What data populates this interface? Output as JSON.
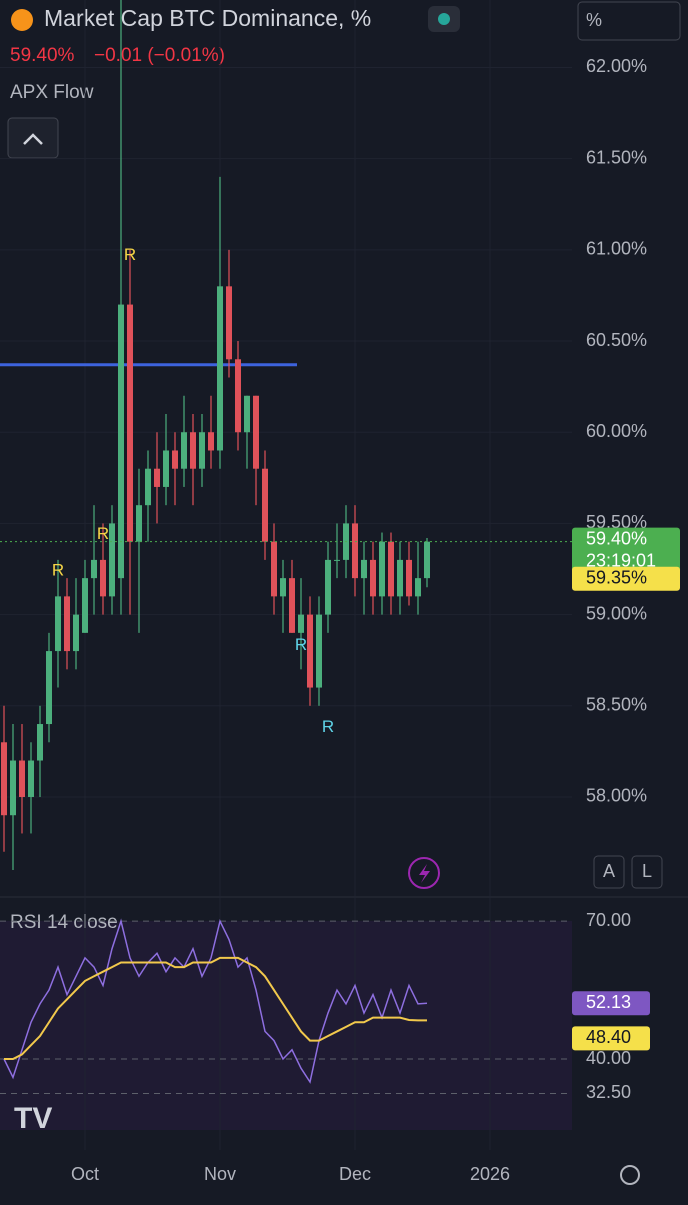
{
  "chart_data": [
    {
      "type": "candlestick",
      "title": "Market Cap BTC Dominance, %",
      "last_value": "59.40%",
      "change": "−0.01 (−0.01%)",
      "indicator": "APX Flow",
      "scale_button": "%",
      "up_color": "#4caf7d",
      "down_color": "#e0525a",
      "categories": [
        null,
        null,
        null,
        null,
        null,
        null,
        null,
        null,
        null,
        "Oct",
        null,
        null,
        null,
        null,
        null,
        null,
        null,
        null,
        null,
        null,
        null,
        null,
        null,
        null,
        "Nov",
        null,
        null,
        null,
        null,
        null,
        null,
        null,
        null,
        null,
        null,
        null,
        null,
        null,
        null,
        "Dec",
        null,
        null,
        null,
        null,
        null,
        null,
        null,
        null,
        null,
        null,
        null,
        null,
        null,
        null,
        "2026",
        null
      ],
      "values": [
        [
          58.3,
          58.5,
          57.7,
          57.9
        ],
        [
          57.9,
          58.4,
          57.6,
          58.2
        ],
        [
          58.2,
          58.4,
          57.8,
          58.0
        ],
        [
          58.0,
          58.3,
          57.8,
          58.2
        ],
        [
          58.2,
          58.5,
          58.0,
          58.4
        ],
        [
          58.4,
          58.9,
          58.3,
          58.8
        ],
        [
          58.8,
          59.3,
          58.6,
          59.1
        ],
        [
          59.1,
          59.2,
          58.7,
          58.8
        ],
        [
          58.8,
          59.2,
          58.7,
          59.0
        ],
        [
          58.9,
          59.3,
          58.9,
          59.2
        ],
        [
          59.2,
          59.6,
          59.0,
          59.3
        ],
        [
          59.3,
          59.5,
          59.0,
          59.1
        ],
        [
          59.1,
          59.6,
          59.0,
          59.5
        ],
        [
          59.2,
          62.4,
          59.0,
          60.7
        ],
        [
          60.7,
          61.0,
          59.0,
          59.4
        ],
        [
          59.4,
          59.8,
          58.9,
          59.6
        ],
        [
          59.6,
          59.9,
          59.4,
          59.8
        ],
        [
          59.8,
          60.0,
          59.5,
          59.7
        ],
        [
          59.7,
          60.1,
          59.6,
          59.9
        ],
        [
          59.9,
          60.0,
          59.6,
          59.8
        ],
        [
          59.8,
          60.2,
          59.7,
          60.0
        ],
        [
          60.0,
          60.1,
          59.6,
          59.8
        ],
        [
          59.8,
          60.1,
          59.7,
          60.0
        ],
        [
          60.0,
          60.2,
          59.8,
          59.9
        ],
        [
          59.9,
          61.4,
          59.8,
          60.8
        ],
        [
          60.8,
          61.0,
          60.3,
          60.4
        ],
        [
          60.4,
          60.5,
          59.9,
          60.0
        ],
        [
          60.0,
          60.2,
          59.8,
          60.2
        ],
        [
          60.2,
          60.2,
          59.6,
          59.8
        ],
        [
          59.8,
          59.9,
          59.3,
          59.4
        ],
        [
          59.4,
          59.5,
          59.0,
          59.1
        ],
        [
          59.1,
          59.3,
          58.9,
          59.2
        ],
        [
          59.2,
          59.3,
          58.9,
          58.9
        ],
        [
          58.9,
          59.2,
          58.7,
          59.0
        ],
        [
          59.0,
          59.1,
          58.5,
          58.6
        ],
        [
          58.6,
          59.1,
          58.5,
          59.0
        ],
        [
          59.0,
          59.4,
          58.9,
          59.3
        ],
        [
          59.3,
          59.5,
          59.2,
          59.3
        ],
        [
          59.3,
          59.6,
          59.2,
          59.5
        ],
        [
          59.5,
          59.6,
          59.1,
          59.2
        ],
        [
          59.2,
          59.4,
          59.0,
          59.3
        ],
        [
          59.3,
          59.4,
          59.0,
          59.1
        ],
        [
          59.1,
          59.45,
          59.0,
          59.4
        ],
        [
          59.4,
          59.45,
          59.0,
          59.1
        ],
        [
          59.1,
          59.4,
          59.0,
          59.3
        ],
        [
          59.3,
          59.4,
          59.05,
          59.1
        ],
        [
          59.1,
          59.4,
          59.0,
          59.2
        ],
        [
          59.2,
          59.42,
          59.15,
          59.4
        ],
        null,
        null,
        null,
        null,
        null,
        null,
        null,
        null
      ],
      "ylim": [
        57.49,
        62.37
      ],
      "yticks": [
        {
          "value": 58,
          "label": "58.00%"
        },
        {
          "value": 58.5,
          "label": "58.50%"
        },
        {
          "value": 59,
          "label": "59.00%"
        },
        {
          "value": 59.5,
          "label": "59.50%"
        },
        {
          "value": 60,
          "label": "60.00%"
        },
        {
          "value": 60.5,
          "label": "60.50%"
        },
        {
          "value": 61,
          "label": "61.00%"
        },
        {
          "value": 61.5,
          "label": "61.50%"
        },
        {
          "value": 62,
          "label": "62.00%"
        }
      ],
      "grid": true,
      "hline": {
        "value": 60.37,
        "color": "#3d63dd"
      },
      "annotations": [
        {
          "text": "R",
          "index": 6,
          "value": 59.24,
          "color": "#f5d547"
        },
        {
          "text": "R",
          "index": 11,
          "value": 59.44,
          "color": "#f5d547"
        },
        {
          "text": "R",
          "index": 14,
          "value": 60.97,
          "color": "#f5d547"
        },
        {
          "text": "R",
          "index": 33,
          "value": 58.83,
          "color": "#5fd4e8"
        },
        {
          "text": "R",
          "index": 36,
          "value": 58.38,
          "color": "#5fd4e8"
        }
      ],
      "price_labels": [
        {
          "value": 59.4,
          "label": "59.40%",
          "timer": "23:19:01",
          "color": "#4caf50"
        },
        {
          "value": 59.35,
          "label": "59.35%",
          "color": "#f5e04a"
        }
      ]
    },
    {
      "type": "line",
      "title": "RSI 14 close",
      "series": [
        {
          "name": "RSI",
          "color": "#8e6fe0",
          "values": [
            40,
            36,
            42,
            48,
            52,
            55,
            60,
            54,
            58,
            62,
            60,
            56,
            64,
            70,
            62,
            58,
            61,
            63,
            59,
            62,
            60,
            64,
            58,
            62,
            70,
            66,
            60,
            62,
            55,
            46,
            44,
            40,
            42,
            38,
            35,
            44,
            50,
            55,
            52,
            56,
            50,
            54,
            49,
            55,
            50,
            56,
            52,
            52.13
          ]
        },
        {
          "name": "MA",
          "color": "#f2c94c",
          "values": [
            40,
            40,
            41,
            43,
            45,
            48,
            51,
            53,
            55,
            57,
            58,
            59,
            60,
            61,
            61,
            61,
            61,
            61,
            61,
            60,
            60,
            61,
            61,
            61,
            62,
            62,
            62,
            61,
            60,
            58,
            55,
            52,
            49,
            46,
            44,
            44,
            45,
            46,
            47,
            48,
            48,
            49,
            49,
            49,
            49,
            48.5,
            48.4,
            48.4
          ]
        }
      ],
      "ylim": [
        20.2,
        74.6
      ],
      "yticks": [
        {
          "value": 70,
          "label": "70.00"
        },
        {
          "value": 40,
          "label": "40.00"
        },
        {
          "value": 32.5,
          "label": "32.50"
        }
      ],
      "price_labels": [
        {
          "value": 52.13,
          "label": "52.13",
          "color": "#7e57c2"
        },
        {
          "value": 48.4,
          "label": "48.40",
          "color": "#f5e04a"
        }
      ]
    }
  ]
}
